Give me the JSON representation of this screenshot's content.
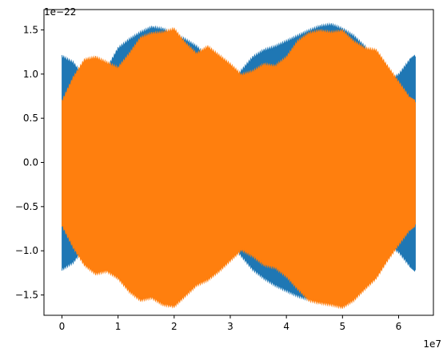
{
  "chart_data": {
    "type": "area",
    "title": "",
    "xlabel": "",
    "ylabel": "",
    "x_offset_label": "1e7",
    "y_offset_label": "1e−22",
    "xlim": [
      -0.32,
      6.62
    ],
    "ylim": [
      -1.73,
      1.73
    ],
    "grid": false,
    "legend": "none",
    "x_ticks": [
      {
        "value": 0,
        "label": "0"
      },
      {
        "value": 1,
        "label": "1"
      },
      {
        "value": 2,
        "label": "2"
      },
      {
        "value": 3,
        "label": "3"
      },
      {
        "value": 4,
        "label": "4"
      },
      {
        "value": 5,
        "label": "5"
      },
      {
        "value": 6,
        "label": "6"
      }
    ],
    "y_ticks": [
      {
        "value": -1.5,
        "label": "−1.5"
      },
      {
        "value": -1.0,
        "label": "−1.0"
      },
      {
        "value": -0.5,
        "label": "−0.5"
      },
      {
        "value": 0.0,
        "label": "0.0"
      },
      {
        "value": 0.5,
        "label": "0.5"
      },
      {
        "value": 1.0,
        "label": "1.0"
      },
      {
        "value": 1.5,
        "label": "1.5"
      }
    ],
    "series": [
      {
        "color": "#1f77b4",
        "x": [
          0,
          0.2,
          0.4,
          0.6,
          0.8,
          1.0,
          1.2,
          1.4,
          1.6,
          1.8,
          2.0,
          2.2,
          2.4,
          2.6,
          2.8,
          3.0,
          3.2,
          3.4,
          3.6,
          3.8,
          4.0,
          4.2,
          4.4,
          4.6,
          4.8,
          5.0,
          5.2,
          5.4,
          5.6,
          5.8,
          6.0,
          6.2,
          6.3
        ],
        "upper": [
          1.19,
          1.12,
          0.95,
          0.85,
          1.05,
          1.28,
          1.38,
          1.46,
          1.52,
          1.5,
          1.44,
          1.38,
          1.3,
          1.18,
          1.02,
          0.88,
          1.03,
          1.18,
          1.26,
          1.3,
          1.36,
          1.42,
          1.48,
          1.53,
          1.55,
          1.5,
          1.42,
          1.3,
          1.1,
          0.92,
          0.98,
          1.15,
          1.2
        ],
        "lower": [
          -1.2,
          -1.12,
          -0.95,
          -0.88,
          -1.08,
          -1.3,
          -1.38,
          -1.45,
          -1.52,
          -1.55,
          -1.5,
          -1.42,
          -1.3,
          -1.18,
          -1.02,
          -0.88,
          -1.05,
          -1.2,
          -1.3,
          -1.38,
          -1.44,
          -1.5,
          -1.54,
          -1.57,
          -1.55,
          -1.5,
          -1.4,
          -1.28,
          -1.12,
          -0.92,
          -1.0,
          -1.16,
          -1.22
        ]
      },
      {
        "color": "#ff7f0e",
        "x": [
          0,
          0.2,
          0.4,
          0.6,
          0.8,
          1.0,
          1.2,
          1.4,
          1.6,
          1.8,
          2.0,
          2.2,
          2.4,
          2.6,
          2.8,
          3.0,
          3.2,
          3.4,
          3.6,
          3.8,
          4.0,
          4.2,
          4.4,
          4.6,
          4.8,
          5.0,
          5.2,
          5.4,
          5.6,
          5.8,
          6.0,
          6.2,
          6.3
        ],
        "upper": [
          0.68,
          0.95,
          1.15,
          1.18,
          1.12,
          1.06,
          1.22,
          1.4,
          1.45,
          1.46,
          1.5,
          1.34,
          1.22,
          1.3,
          1.2,
          1.1,
          0.98,
          1.02,
          1.1,
          1.08,
          1.18,
          1.36,
          1.45,
          1.48,
          1.46,
          1.48,
          1.36,
          1.28,
          1.26,
          1.08,
          0.9,
          0.72,
          0.68
        ],
        "lower": [
          -0.7,
          -0.95,
          -1.15,
          -1.25,
          -1.22,
          -1.3,
          -1.45,
          -1.55,
          -1.52,
          -1.6,
          -1.62,
          -1.5,
          -1.38,
          -1.32,
          -1.22,
          -1.1,
          -0.98,
          -1.05,
          -1.15,
          -1.18,
          -1.28,
          -1.42,
          -1.55,
          -1.58,
          -1.6,
          -1.63,
          -1.55,
          -1.42,
          -1.3,
          -1.1,
          -0.92,
          -0.75,
          -0.7
        ]
      }
    ]
  }
}
